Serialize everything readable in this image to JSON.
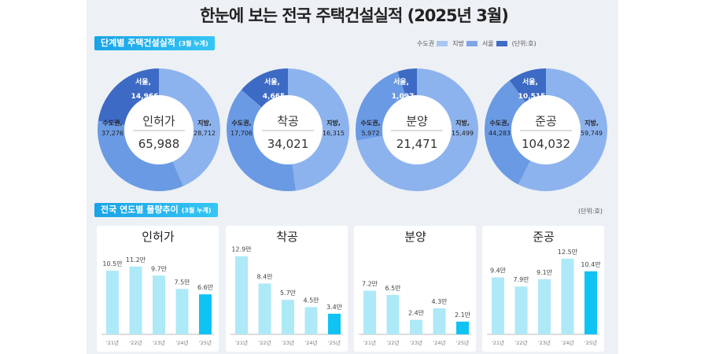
{
  "title": "한눈에 보는 전국 주택건설실적 (2025년 3월)",
  "section1": {
    "label": "단계별 주택건설실적",
    "sub": "(3월 누계)"
  },
  "legend": {
    "items": [
      {
        "label": "수도권",
        "color": "#a9c6f2"
      },
      {
        "label": "지방",
        "color": "#7ea5e6"
      },
      {
        "label": "서울",
        "color": "#3f6cc6"
      }
    ],
    "unit": "(단위:호)"
  },
  "section2": {
    "label": "전국 연도별 물량추이",
    "sub": "(3월 누계)",
    "unit": "(단위:호)"
  },
  "chart_data": [
    {
      "type": "pie",
      "title": "인허가",
      "total": "65,988",
      "slices": [
        {
          "label": "지방,",
          "value": 28712,
          "text": "28,712"
        },
        {
          "label": "수도권,",
          "value": 37276,
          "text": "37,276"
        },
        {
          "label": "서울,",
          "value": 14966,
          "text": "14,966"
        }
      ]
    },
    {
      "type": "pie",
      "title": "착공",
      "total": "34,021",
      "slices": [
        {
          "label": "지방,",
          "value": 16315,
          "text": "16,315"
        },
        {
          "label": "수도권,",
          "value": 17706,
          "text": "17,706"
        },
        {
          "label": "서울,",
          "value": 4665,
          "text": "4,665"
        }
      ]
    },
    {
      "type": "pie",
      "title": "분양",
      "total": "21,471",
      "slices": [
        {
          "label": "지방,",
          "value": 15499,
          "text": "15,499"
        },
        {
          "label": "수도권,",
          "value": 5972,
          "text": "5,972"
        },
        {
          "label": "서울,",
          "value": 1097,
          "text": "1,097"
        }
      ]
    },
    {
      "type": "pie",
      "title": "준공",
      "total": "104,032",
      "slices": [
        {
          "label": "지방,",
          "value": 59749,
          "text": "59,749"
        },
        {
          "label": "수도권,",
          "value": 44283,
          "text": "44,283"
        },
        {
          "label": "서울,",
          "value": 10515,
          "text": "10,515"
        }
      ]
    },
    {
      "type": "bar",
      "title": "인허가",
      "categories": [
        "'21년",
        "'22년",
        "'23년",
        "'24년",
        "'25년"
      ],
      "values": [
        10.5,
        11.2,
        9.7,
        7.5,
        6.6
      ],
      "labels": [
        "10.5만",
        "11.2만",
        "9.7만",
        "7.5만",
        "6.6만"
      ]
    },
    {
      "type": "bar",
      "title": "착공",
      "categories": [
        "'21년",
        "'22년",
        "'23년",
        "'24년",
        "'25년"
      ],
      "values": [
        12.9,
        8.4,
        5.7,
        4.5,
        3.4
      ],
      "labels": [
        "12.9만",
        "8.4만",
        "5.7만",
        "4.5만",
        "3.4만"
      ]
    },
    {
      "type": "bar",
      "title": "분양",
      "categories": [
        "'21년",
        "'22년",
        "'23년",
        "'24년",
        "'25년"
      ],
      "values": [
        7.2,
        6.5,
        2.4,
        4.3,
        2.1
      ],
      "labels": [
        "7.2만",
        "6.5만",
        "2.4만",
        "4.3만",
        "2.1만"
      ]
    },
    {
      "type": "bar",
      "title": "준공",
      "categories": [
        "'21년",
        "'22년",
        "'23년",
        "'24년",
        "'25년"
      ],
      "values": [
        9.4,
        7.9,
        9.1,
        12.5,
        10.4
      ],
      "labels": [
        "9.4만",
        "7.9만",
        "9.1만",
        "12.5만",
        "10.4만"
      ]
    }
  ],
  "colors": {
    "local": "#8db3ee",
    "capital": "#6a9ae4",
    "seoul": "#3d6ac4",
    "bar": "#aee9f7",
    "bar_current": "#0fc3f5"
  }
}
